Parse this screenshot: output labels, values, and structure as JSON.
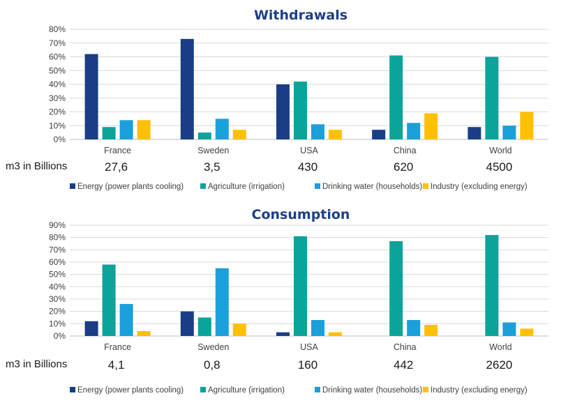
{
  "colors": {
    "energy": "#1a3e85",
    "agriculture": "#0ca39a",
    "drinking": "#1aa0da",
    "industry": "#ffc000"
  },
  "legend": [
    {
      "key": "energy",
      "label": "Energy (power plants cooling)"
    },
    {
      "key": "agriculture",
      "label": "Agriculture (irrigation)"
    },
    {
      "key": "drinking",
      "label": "Drinking water (households)"
    },
    {
      "key": "industry",
      "label": "Industry (excluding energy)"
    }
  ],
  "chart_data": [
    {
      "type": "bar",
      "title": "Withdrawals",
      "categories": [
        "France",
        "Sweden",
        "USA",
        "China",
        "World"
      ],
      "ylim": [
        0,
        80
      ],
      "yticks": [
        "0%",
        "10%",
        "20%",
        "30%",
        "40%",
        "50%",
        "60%",
        "70%",
        "80%"
      ],
      "series": [
        {
          "name": "Energy (power plants cooling)",
          "key": "energy",
          "values": [
            62,
            73,
            40,
            7,
            9
          ]
        },
        {
          "name": "Agriculture (irrigation)",
          "key": "agriculture",
          "values": [
            9,
            5,
            42,
            61,
            60
          ]
        },
        {
          "name": "Drinking water (households)",
          "key": "drinking",
          "values": [
            14,
            15,
            11,
            12,
            10
          ]
        },
        {
          "name": "Industry (excluding energy)",
          "key": "industry",
          "values": [
            14,
            7,
            7,
            19,
            20
          ]
        }
      ],
      "unit_label": "m3 in Billions",
      "amounts": [
        "27,6",
        "3,5",
        "430",
        "620",
        "4500"
      ],
      "grid": true,
      "legend_position": "bottom"
    },
    {
      "type": "bar",
      "title": "Consumption",
      "categories": [
        "France",
        "Sweden",
        "USA",
        "China",
        "World"
      ],
      "ylim": [
        0,
        90
      ],
      "yticks": [
        "0%",
        "10%",
        "20%",
        "30%",
        "40%",
        "50%",
        "60%",
        "70%",
        "80%",
        "90%"
      ],
      "series": [
        {
          "name": "Energy (power plants cooling)",
          "key": "energy",
          "values": [
            12,
            20,
            3,
            0,
            0
          ]
        },
        {
          "name": "Agriculture (irrigation)",
          "key": "agriculture",
          "values": [
            58,
            15,
            81,
            77,
            82
          ]
        },
        {
          "name": "Drinking water (households)",
          "key": "drinking",
          "values": [
            26,
            55,
            13,
            13,
            11
          ]
        },
        {
          "name": "Industry (excluding energy)",
          "key": "industry",
          "values": [
            4,
            10,
            3,
            9,
            6
          ]
        }
      ],
      "unit_label": "m3  in Billions",
      "amounts": [
        "4,1",
        "0,8",
        "160",
        "442",
        "2620"
      ],
      "grid": true,
      "legend_position": "bottom"
    }
  ]
}
